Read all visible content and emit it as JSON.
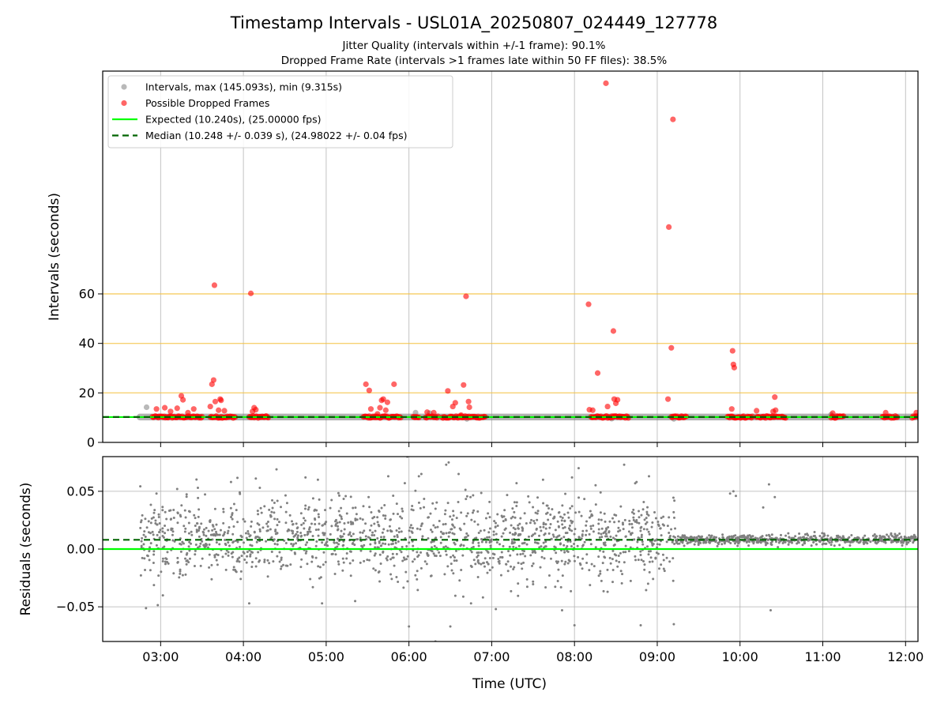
{
  "chart_data": {
    "type": "scatter",
    "title": "Timestamp Intervals - USL01A_20250807_024449_127778",
    "subtitle_lines": [
      "Jitter Quality (intervals within +/-1 frame): 90.1%",
      "Dropped Frame Rate (intervals >1 frames late within 50 FF files): 38.5%"
    ],
    "xlabel": "Time (UTC)",
    "x_ticks": [
      "03:00",
      "04:00",
      "05:00",
      "06:00",
      "07:00",
      "08:00",
      "09:00",
      "10:00",
      "11:00",
      "12:00"
    ],
    "xlim_hours": [
      2.3,
      12.15
    ],
    "top_panel": {
      "ylabel": "Intervals (seconds)",
      "y_ticks": [
        "0",
        "20",
        "40",
        "60"
      ],
      "ylim": [
        0,
        150
      ],
      "reference_lines": [
        20,
        40,
        60
      ],
      "reference_line_color": "#f5c242",
      "expected_value": 10.24,
      "median_value": 10.248,
      "legend_location": "upper-left",
      "legend": [
        {
          "label": "Intervals, max (145.093s), min (9.315s)",
          "marker": "dot",
          "color": "#808080"
        },
        {
          "label": "Possible Dropped Frames",
          "marker": "dot",
          "color": "#ff0000"
        },
        {
          "label": "Expected (10.240s), (25.00000 fps)",
          "marker": "solid-line",
          "color": "#00ff00"
        },
        {
          "label": "Median (10.248 +/- 0.039 s), (24.98022 +/- 0.04 fps)",
          "marker": "dashed-line",
          "color": "#006400"
        }
      ],
      "series": [
        {
          "name": "Intervals, max (145.093s), min (9.315s)",
          "color": "#808080",
          "baseline_segments": [
            [
              2.75,
              12.15
            ]
          ],
          "points": [
            [
              2.83,
              14.2
            ],
            [
              6.08,
              12.0
            ],
            [
              6.25,
              11.8
            ],
            [
              6.7,
              9.5
            ],
            [
              8.45,
              9.6
            ],
            [
              9.2,
              9.5
            ],
            [
              11.1,
              11.2
            ]
          ]
        },
        {
          "name": "Possible Dropped Frames",
          "color": "#ff0000",
          "dense_segments": [
            [
              2.9,
              3.5
            ],
            [
              3.6,
              3.9
            ],
            [
              4.07,
              4.3
            ],
            [
              5.45,
              5.9
            ],
            [
              6.05,
              6.12
            ],
            [
              6.2,
              6.35
            ],
            [
              6.4,
              6.92
            ],
            [
              8.2,
              8.65
            ],
            [
              9.17,
              9.35
            ],
            [
              9.85,
              10.15
            ],
            [
              10.2,
              10.55
            ],
            [
              11.1,
              11.25
            ],
            [
              11.72,
              11.9
            ],
            [
              12.08,
              12.15
            ]
          ],
          "points": [
            [
              2.95,
              13.5
            ],
            [
              3.05,
              14.0
            ],
            [
              3.12,
              12.5
            ],
            [
              3.2,
              13.8
            ],
            [
              3.25,
              18.8
            ],
            [
              3.27,
              17.2
            ],
            [
              3.33,
              12.0
            ],
            [
              3.4,
              13.5
            ],
            [
              3.6,
              14.5
            ],
            [
              3.62,
              23.5
            ],
            [
              3.64,
              25.2
            ],
            [
              3.65,
              63.5
            ],
            [
              3.66,
              16.5
            ],
            [
              3.7,
              13.0
            ],
            [
              3.72,
              17.5
            ],
            [
              3.73,
              17.0
            ],
            [
              3.77,
              12.8
            ],
            [
              4.09,
              60.2
            ],
            [
              4.11,
              12.5
            ],
            [
              4.13,
              14.0
            ],
            [
              4.15,
              13.2
            ],
            [
              5.48,
              23.5
            ],
            [
              5.52,
              21.0
            ],
            [
              5.54,
              13.5
            ],
            [
              5.62,
              11.5
            ],
            [
              5.65,
              14.0
            ],
            [
              5.67,
              17.0
            ],
            [
              5.69,
              17.5
            ],
            [
              5.72,
              13.0
            ],
            [
              5.74,
              16.2
            ],
            [
              5.82,
              23.5
            ],
            [
              6.22,
              12.2
            ],
            [
              6.3,
              12.0
            ],
            [
              6.47,
              20.8
            ],
            [
              6.53,
              14.5
            ],
            [
              6.56,
              16.0
            ],
            [
              6.63,
              11.0
            ],
            [
              6.66,
              23.2
            ],
            [
              6.69,
              59.0
            ],
            [
              6.72,
              16.5
            ],
            [
              6.73,
              14.2
            ],
            [
              8.17,
              55.8
            ],
            [
              8.18,
              13.2
            ],
            [
              8.22,
              13.0
            ],
            [
              8.28,
              28.0
            ],
            [
              8.38,
              145.09
            ],
            [
              8.4,
              14.5
            ],
            [
              8.47,
              45.0
            ],
            [
              8.48,
              17.5
            ],
            [
              8.5,
              15.8
            ],
            [
              8.52,
              17.2
            ],
            [
              9.13,
              17.5
            ],
            [
              9.14,
              87.0
            ],
            [
              9.17,
              38.2
            ],
            [
              9.19,
              130.5
            ],
            [
              9.9,
              13.5
            ],
            [
              9.91,
              37.0
            ],
            [
              9.92,
              31.5
            ],
            [
              9.93,
              30.2
            ],
            [
              10.2,
              12.8
            ],
            [
              10.4,
              12.5
            ],
            [
              10.42,
              18.3
            ],
            [
              10.43,
              13.0
            ],
            [
              11.12,
              11.8
            ],
            [
              11.76,
              12.0
            ],
            [
              12.13,
              12.0
            ]
          ]
        }
      ]
    },
    "bottom_panel": {
      "ylabel": "Residuals (seconds)",
      "y_ticks": [
        "0.05",
        "0.00",
        "−0.05"
      ],
      "ylim": [
        -0.08,
        0.08
      ],
      "expected_residual": 0.0,
      "median_residual": 0.008,
      "series": [
        {
          "name": "Residuals",
          "color": "#808080",
          "segments": [
            {
              "x_range": [
                2.75,
                9.22
              ],
              "mean": 0.008,
              "spread": 0.02,
              "count": 1500
            },
            {
              "x_range": [
                9.22,
                12.15
              ],
              "mean": 0.008,
              "spread": 0.0025,
              "count": 650
            }
          ],
          "outliers": [
            [
              2.95,
              0.048
            ],
            [
              3.2,
              0.052
            ],
            [
              3.45,
              0.053
            ],
            [
              3.85,
              0.058
            ],
            [
              4.07,
              -0.047
            ],
            [
              4.15,
              0.061
            ],
            [
              4.4,
              0.069
            ],
            [
              4.75,
              0.062
            ],
            [
              4.9,
              0.06
            ],
            [
              4.95,
              -0.047
            ],
            [
              5.35,
              -0.045
            ],
            [
              5.75,
              0.063
            ],
            [
              5.95,
              0.057
            ],
            [
              5.98,
              0.08
            ],
            [
              6.0,
              -0.067
            ],
            [
              6.12,
              0.063
            ],
            [
              6.15,
              0.065
            ],
            [
              6.32,
              -0.08
            ],
            [
              6.45,
              0.073
            ],
            [
              6.48,
              0.075
            ],
            [
              6.5,
              -0.067
            ],
            [
              6.6,
              0.065
            ],
            [
              6.75,
              -0.047
            ],
            [
              7.05,
              -0.052
            ],
            [
              7.3,
              0.057
            ],
            [
              7.62,
              0.06
            ],
            [
              7.85,
              -0.053
            ],
            [
              7.97,
              0.062
            ],
            [
              8.0,
              -0.066
            ],
            [
              8.05,
              0.07
            ],
            [
              8.6,
              0.073
            ],
            [
              8.75,
              0.058
            ],
            [
              8.8,
              -0.066
            ],
            [
              8.9,
              0.063
            ],
            [
              9.2,
              -0.065
            ],
            [
              9.88,
              0.048
            ],
            [
              9.92,
              0.05
            ],
            [
              9.95,
              0.046
            ],
            [
              10.28,
              0.036
            ],
            [
              10.35,
              0.056
            ],
            [
              10.37,
              -0.053
            ],
            [
              10.42,
              0.045
            ]
          ]
        }
      ]
    }
  }
}
